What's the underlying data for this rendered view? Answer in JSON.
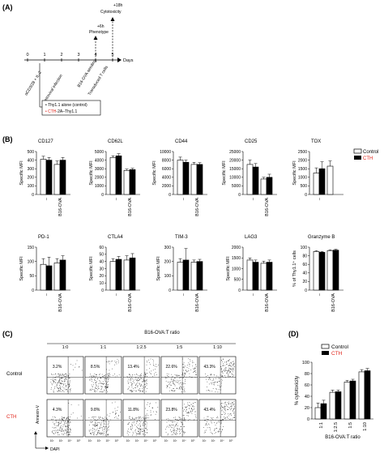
{
  "panels": {
    "A": "(A)",
    "B": "(B)",
    "C": "(C)",
    "D": "(D)"
  },
  "timeline": {
    "ticks": [
      "0",
      "1",
      "2",
      "3",
      "4",
      "5"
    ],
    "unit": "Days",
    "events": [
      "αCD3/28 + IL-2",
      "γ-retroviral infection",
      "B16-OVA seeding",
      "Transduced T cells"
    ],
    "phenotype_time": "+6h",
    "phenotype_label": "Phenotype",
    "cytotox_time": "+18h",
    "cytotox_label": "Cytotoxicity",
    "box_line1": "Thy1.1 alone (control)",
    "box_line2_prefix": "CTH",
    "box_line2_suffix": "-2A–Thy1.1"
  },
  "colors": {
    "cth_red": "#e0251b",
    "control_fill": "#ffffff",
    "cth_fill": "#000000"
  },
  "legend": {
    "control": "Control",
    "cth": "CTH"
  },
  "bar_x_categories": [
    "–",
    "B16-OVA"
  ],
  "chart_data": [
    {
      "type": "bar",
      "title": "CD127",
      "ylabel": "Specific MFI",
      "ylim": [
        0,
        500
      ],
      "yticks": [
        0,
        100,
        200,
        300,
        400,
        500
      ],
      "categories": [
        "–",
        "B16-OVA"
      ],
      "series": [
        {
          "name": "Control",
          "values": [
            410,
            350
          ],
          "errors": [
            35,
            40
          ]
        },
        {
          "name": "CTH",
          "values": [
            400,
            400
          ],
          "errors": [
            30,
            30
          ]
        }
      ]
    },
    {
      "type": "bar",
      "title": "CD62L",
      "ylabel": "Specific MFI",
      "ylim": [
        0,
        5000
      ],
      "yticks": [
        0,
        1000,
        2000,
        3000,
        4000,
        5000
      ],
      "categories": [
        "–",
        "B16-OVA"
      ],
      "series": [
        {
          "name": "Control",
          "values": [
            4300,
            2800
          ],
          "errors": [
            200,
            150
          ]
        },
        {
          "name": "CTH",
          "values": [
            4500,
            2900
          ],
          "errors": [
            250,
            150
          ]
        }
      ]
    },
    {
      "type": "bar",
      "title": "CD44",
      "ylabel": "Specific MFI",
      "ylim": [
        0,
        10000
      ],
      "yticks": [
        0,
        2000,
        4000,
        6000,
        8000,
        10000
      ],
      "categories": [
        "–",
        "B16-OVA"
      ],
      "series": [
        {
          "name": "Control",
          "values": [
            8000,
            7000
          ],
          "errors": [
            700,
            500
          ]
        },
        {
          "name": "CTH",
          "values": [
            7500,
            7000
          ],
          "errors": [
            500,
            400
          ]
        }
      ]
    },
    {
      "type": "bar",
      "title": "CD25",
      "ylabel": "Specific MFI",
      "ylim": [
        0,
        25000
      ],
      "yticks": [
        0,
        5000,
        10000,
        15000,
        20000,
        25000
      ],
      "categories": [
        "–",
        "B16-OVA"
      ],
      "series": [
        {
          "name": "Control",
          "values": [
            17500,
            9000
          ],
          "errors": [
            2500,
            1000
          ]
        },
        {
          "name": "CTH",
          "values": [
            16000,
            10000
          ],
          "errors": [
            2000,
            1800
          ]
        }
      ]
    },
    {
      "type": "bar",
      "title": "TOX",
      "ylabel": "Specific MFI",
      "ylim": [
        0,
        2500
      ],
      "yticks": [
        0,
        500,
        1000,
        1500,
        2000,
        2500
      ],
      "categories": [
        "–"
      ],
      "series": [
        {
          "name": "Control",
          "values": [
            1250
          ],
          "errors": [
            300
          ]
        },
        {
          "name": "CTH",
          "values": [
            1500
          ],
          "errors": [
            400
          ]
        }
      ],
      "extra_bars": [
        {
          "name": "Control",
          "value": 1650,
          "error": 300
        }
      ]
    },
    {
      "type": "bar",
      "title": "PD-1",
      "ylabel": "Specific MFI",
      "ylim": [
        0,
        150
      ],
      "yticks": [
        0,
        50,
        100,
        150
      ],
      "categories": [
        "–",
        "B16-OVA"
      ],
      "series": [
        {
          "name": "Control",
          "values": [
            90,
            95
          ],
          "errors": [
            20,
            15
          ]
        },
        {
          "name": "CTH",
          "values": [
            85,
            105
          ],
          "errors": [
            30,
            15
          ]
        }
      ]
    },
    {
      "type": "bar",
      "title": "CTLA4",
      "ylabel": "Specific MFI",
      "ylim": [
        0,
        60
      ],
      "yticks": [
        0,
        10,
        20,
        30,
        40,
        50,
        60
      ],
      "categories": [
        "–",
        "B16-OVA"
      ],
      "series": [
        {
          "name": "Control",
          "values": [
            40,
            42
          ],
          "errors": [
            4,
            6
          ]
        },
        {
          "name": "CTH",
          "values": [
            43,
            45
          ],
          "errors": [
            4,
            6
          ]
        }
      ]
    },
    {
      "type": "bar",
      "title": "TIM-3",
      "ylabel": "Specific MFI",
      "ylim": [
        0,
        300
      ],
      "yticks": [
        0,
        100,
        200,
        300
      ],
      "categories": [
        "–",
        "B16-OVA"
      ],
      "series": [
        {
          "name": "Control",
          "values": [
            195,
            195
          ],
          "errors": [
            25,
            15
          ]
        },
        {
          "name": "CTH",
          "values": [
            210,
            200
          ],
          "errors": [
            80,
            15
          ]
        }
      ]
    },
    {
      "type": "bar",
      "title": "LAG3",
      "ylabel": "Specific MFI",
      "ylim": [
        0,
        2000
      ],
      "yticks": [
        0,
        500,
        1000,
        1500,
        2000
      ],
      "categories": [
        "–",
        "B16-OVA"
      ],
      "series": [
        {
          "name": "Control",
          "values": [
            1400,
            1250
          ],
          "errors": [
            100,
            100
          ]
        },
        {
          "name": "CTH",
          "values": [
            1300,
            1300
          ],
          "errors": [
            100,
            100
          ]
        }
      ]
    },
    {
      "type": "bar",
      "title": "Granzyme B",
      "ylabel": "% of Thy1.1⁺ cells",
      "ylim": [
        0,
        100
      ],
      "yticks": [
        0,
        20,
        40,
        60,
        80,
        100
      ],
      "categories": [
        "–",
        "B16-OVA"
      ],
      "series": [
        {
          "name": "Control",
          "values": [
            90,
            92
          ],
          "errors": [
            2,
            2
          ]
        },
        {
          "name": "CTH",
          "values": [
            88,
            93
          ],
          "errors": [
            2,
            2
          ]
        }
      ]
    },
    {
      "type": "bar",
      "title": "",
      "xlabel": "B16-OVA:T ratio",
      "ylabel": "% cytotoxicity",
      "ylim": [
        0,
        100
      ],
      "yticks": [
        0,
        20,
        40,
        60,
        80,
        100
      ],
      "categories": [
        "1:1",
        "1:2.5",
        "1:5",
        "1:10"
      ],
      "series": [
        {
          "name": "Control",
          "values": [
            20,
            47,
            65,
            83
          ],
          "errors": [
            8,
            4,
            3,
            4
          ]
        },
        {
          "name": "CTH",
          "values": [
            27,
            48,
            67,
            85
          ],
          "errors": [
            6,
            3,
            3,
            4
          ]
        }
      ]
    }
  ],
  "flow": {
    "title": "B16-OVA:T ratio",
    "ratios": [
      "1:0",
      "1:1",
      "1:2.5",
      "1:5",
      "1:10"
    ],
    "row_labels": [
      "Control",
      "CTH"
    ],
    "percentages": [
      [
        "3.2%",
        "8.5%",
        "13.4%",
        "22.6%",
        "43.3%"
      ],
      [
        "4.3%",
        "9.8%",
        "11.8%",
        "23.8%",
        "43.4%"
      ]
    ],
    "y_axis": "Annexin-V",
    "x_axis": "DAPI",
    "tick_labels": [
      "10²",
      "10³",
      "10⁴",
      "10⁵"
    ],
    "y_ticks_left": [
      "10⁵",
      "10⁴",
      "10³",
      "10²"
    ]
  }
}
